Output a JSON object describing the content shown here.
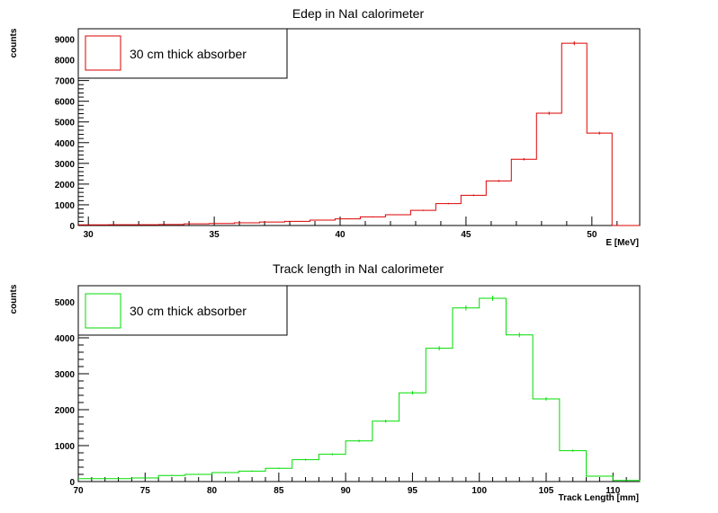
{
  "chart_data": [
    {
      "type": "bar",
      "title": "Edep in NaI calorimeter",
      "xlabel": "E [MeV]",
      "ylabel": "counts",
      "xlim": [
        29.6,
        51.9
      ],
      "ylim": [
        0,
        9500
      ],
      "xticks": [
        30,
        35,
        40,
        45,
        50
      ],
      "yticks": [
        0,
        1000,
        2000,
        3000,
        4000,
        5000,
        6000,
        7000,
        8000,
        9000
      ],
      "color": "#dd0000",
      "legend": {
        "position": "top-left",
        "entries": [
          "30 cm thick absorber"
        ]
      },
      "bins": [
        {
          "x0": 29.6,
          "x1": 30.8,
          "y": 30
        },
        {
          "x0": 30.8,
          "x1": 31.8,
          "y": 40
        },
        {
          "x0": 31.8,
          "x1": 32.8,
          "y": 40
        },
        {
          "x0": 32.8,
          "x1": 33.8,
          "y": 50
        },
        {
          "x0": 33.8,
          "x1": 34.8,
          "y": 80
        },
        {
          "x0": 34.8,
          "x1": 35.8,
          "y": 100
        },
        {
          "x0": 35.8,
          "x1": 36.8,
          "y": 130
        },
        {
          "x0": 36.8,
          "x1": 37.8,
          "y": 170
        },
        {
          "x0": 37.8,
          "x1": 38.8,
          "y": 200
        },
        {
          "x0": 38.8,
          "x1": 39.8,
          "y": 260
        },
        {
          "x0": 39.8,
          "x1": 40.8,
          "y": 320
        },
        {
          "x0": 40.8,
          "x1": 41.8,
          "y": 420
        },
        {
          "x0": 41.8,
          "x1": 42.8,
          "y": 520
        },
        {
          "x0": 42.8,
          "x1": 43.8,
          "y": 730
        },
        {
          "x0": 43.8,
          "x1": 44.8,
          "y": 1060
        },
        {
          "x0": 44.8,
          "x1": 45.8,
          "y": 1460
        },
        {
          "x0": 45.8,
          "x1": 46.8,
          "y": 2150
        },
        {
          "x0": 46.8,
          "x1": 47.8,
          "y": 3200
        },
        {
          "x0": 47.8,
          "x1": 48.8,
          "y": 5420
        },
        {
          "x0": 48.8,
          "x1": 49.8,
          "y": 8800
        },
        {
          "x0": 49.8,
          "x1": 50.8,
          "y": 4460
        }
      ]
    },
    {
      "type": "bar",
      "title": "Track length in NaI calorimeter",
      "xlabel": "Track Length [mm]",
      "ylabel": "counts",
      "xlim": [
        70,
        112
      ],
      "ylim": [
        0,
        5450
      ],
      "xticks": [
        70,
        75,
        80,
        85,
        90,
        95,
        100,
        105,
        110
      ],
      "yticks": [
        0,
        1000,
        2000,
        3000,
        4000,
        5000
      ],
      "color": "#00dd00",
      "legend": {
        "position": "top-left",
        "entries": [
          "30 cm thick absorber"
        ]
      },
      "bins": [
        {
          "x0": 70,
          "x1": 72,
          "y": 80
        },
        {
          "x0": 72,
          "x1": 74,
          "y": 80
        },
        {
          "x0": 74,
          "x1": 76,
          "y": 100
        },
        {
          "x0": 76,
          "x1": 78,
          "y": 170
        },
        {
          "x0": 78,
          "x1": 80,
          "y": 200
        },
        {
          "x0": 80,
          "x1": 82,
          "y": 250
        },
        {
          "x0": 82,
          "x1": 84,
          "y": 290
        },
        {
          "x0": 84,
          "x1": 86,
          "y": 370
        },
        {
          "x0": 86,
          "x1": 88,
          "y": 610
        },
        {
          "x0": 88,
          "x1": 90,
          "y": 760
        },
        {
          "x0": 90,
          "x1": 92,
          "y": 1130
        },
        {
          "x0": 92,
          "x1": 94,
          "y": 1680
        },
        {
          "x0": 94,
          "x1": 96,
          "y": 2470
        },
        {
          "x0": 96,
          "x1": 98,
          "y": 3710
        },
        {
          "x0": 98,
          "x1": 100,
          "y": 4830
        },
        {
          "x0": 100,
          "x1": 102,
          "y": 5100
        },
        {
          "x0": 102,
          "x1": 104,
          "y": 4080
        },
        {
          "x0": 104,
          "x1": 106,
          "y": 2300
        },
        {
          "x0": 106,
          "x1": 108,
          "y": 860
        },
        {
          "x0": 108,
          "x1": 110,
          "y": 150
        },
        {
          "x0": 110,
          "x1": 112,
          "y": 30
        }
      ]
    }
  ]
}
